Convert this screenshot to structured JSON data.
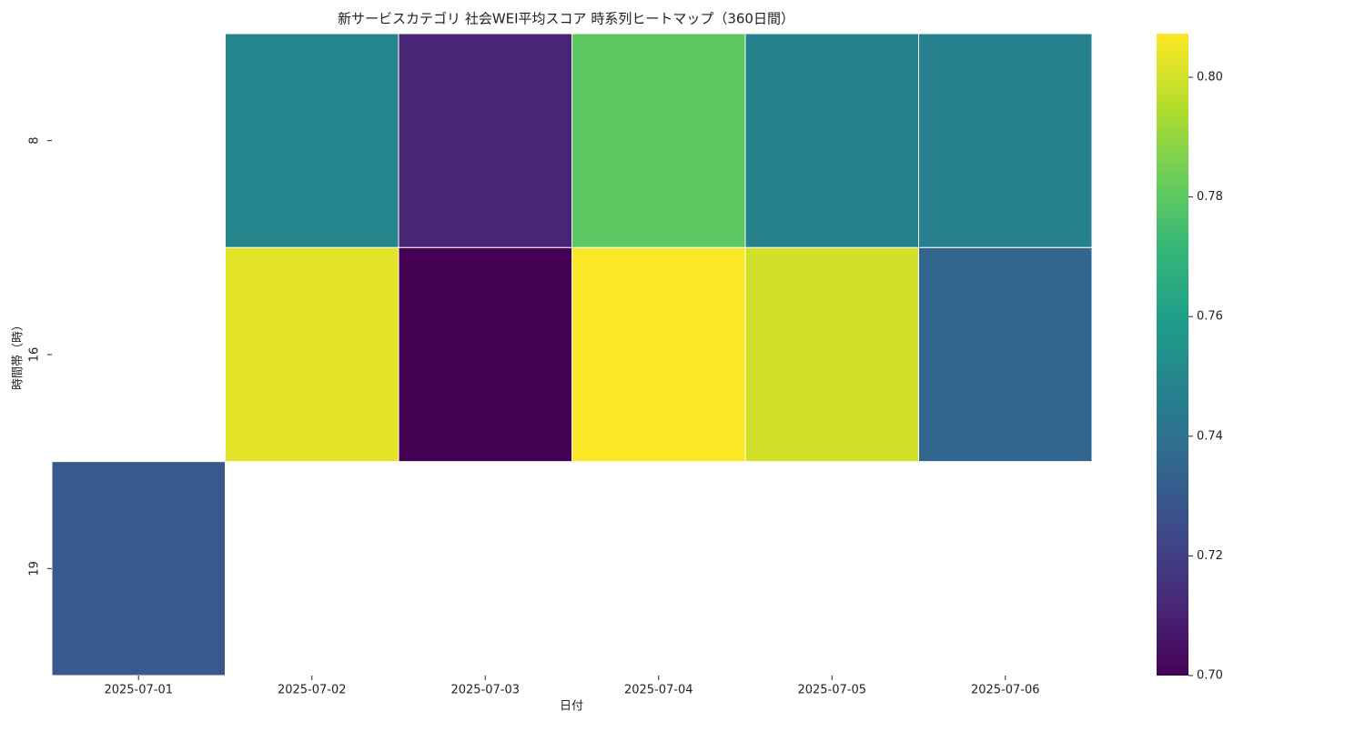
{
  "chart_data": {
    "type": "heatmap",
    "title": "新サービスカテゴリ 社会WEI平均スコア 時系列ヒートマップ（360日間）",
    "x_label": "日付",
    "y_label": "時間帯（時）",
    "x_categories": [
      "2025-07-01",
      "2025-07-02",
      "2025-07-03",
      "2025-07-04",
      "2025-07-05",
      "2025-07-06"
    ],
    "y_categories": [
      "8",
      "16",
      "19"
    ],
    "values": [
      [
        null,
        0.749,
        0.711,
        0.78,
        0.748,
        0.747
      ],
      [
        null,
        0.803,
        0.7,
        0.807,
        0.8,
        0.735
      ],
      [
        0.73,
        null,
        null,
        null,
        null,
        null
      ]
    ],
    "colorbar_lim": [
      0.7,
      0.8073
    ],
    "colorbar_ticks": [
      {
        "value": 0.7,
        "label": "0.70"
      },
      {
        "value": 0.72,
        "label": "0.72"
      },
      {
        "value": 0.74,
        "label": "0.74"
      },
      {
        "value": 0.76,
        "label": "0.76"
      },
      {
        "value": 0.78,
        "label": "0.78"
      },
      {
        "value": 0.8,
        "label": "0.80"
      }
    ],
    "colormap": [
      "#440154",
      "#482878",
      "#3e4989",
      "#31688e",
      "#26828e",
      "#1f9e89",
      "#35b779",
      "#6ece58",
      "#b5de2b",
      "#fde725"
    ],
    "cell_border_color": "#ffffff"
  }
}
